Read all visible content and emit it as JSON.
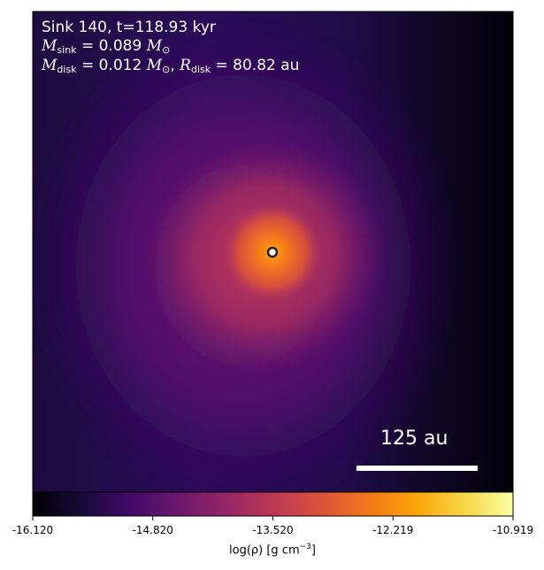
{
  "panel": {
    "sink_line": "Sink 140, t=118.93 kyr",
    "msink_symbol": "M",
    "msink_sub": "sink",
    "msink_value": "= 0.089",
    "mdisk_symbol": "M",
    "mdisk_sub": "disk",
    "mdisk_value": "= 0.012",
    "rdisk_symbol": "R",
    "rdisk_sub": "disk",
    "rdisk_value": "= 80.82 au",
    "solar_mass_symbol": "M",
    "solar_mass_sub": "⊙",
    "separator": ","
  },
  "scale_bar": {
    "label": "125 au"
  },
  "colorbar": {
    "colormap": "inferno",
    "ticks": [
      "-16.120",
      "-14.820",
      "-13.520",
      "-12.219",
      "-10.919"
    ],
    "label": "log(ρ) [g cm",
    "label_exp": "−3",
    "label_close": "]"
  },
  "sink_marker": {
    "fill": "#ffffff",
    "edge": "#2b1a0e"
  }
}
